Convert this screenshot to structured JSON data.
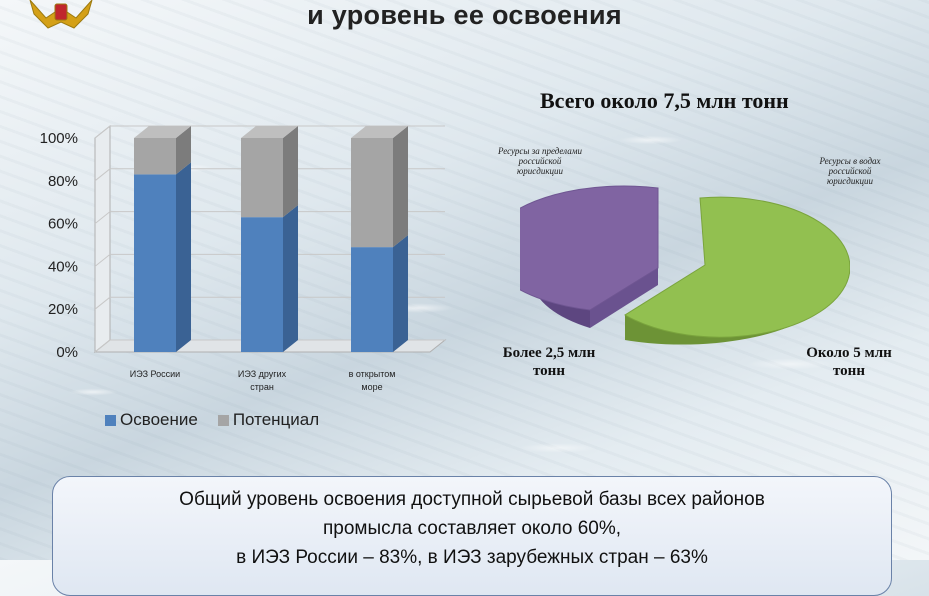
{
  "header": {
    "title": "и уровень ее освоения"
  },
  "chart_data": [
    {
      "type": "bar",
      "stacked": true,
      "categories": [
        "ИЭЗ России",
        "ИЭЗ других стран",
        "в открытом море"
      ],
      "series": [
        {
          "name": "Освоение",
          "values": [
            83,
            63,
            49
          ]
        },
        {
          "name": "Потенциал",
          "values": [
            17,
            37,
            51
          ]
        }
      ],
      "ytick_labels": [
        "0%",
        "20%",
        "40%",
        "60%",
        "80%",
        "100%"
      ],
      "ylim": [
        0,
        100
      ],
      "legend": "bottom",
      "colors": {
        "Освоение": "#4f81bd",
        "Потенциал": "#a5a5a5"
      }
    },
    {
      "type": "pie",
      "title": "Всего около 7,5 млн тонн",
      "slices": [
        {
          "note": "Ресурсы в водах российской юрисдикции",
          "amount": "Около 5 млн тонн",
          "value": 5,
          "color": "#92c050"
        },
        {
          "note": "Ресурсы за пределами российской юрисдикции",
          "amount": "Более 2,5 млн тонн",
          "value": 2.5,
          "color": "#8064a2"
        }
      ]
    }
  ],
  "infobox": {
    "line1": "Общий уровень освоения доступной сырьевой базы всех районов",
    "line2": "промысла составляет около 60%,",
    "line3": "в ИЭЗ России – 83%, в ИЭЗ зарубежных стран – 63%"
  }
}
